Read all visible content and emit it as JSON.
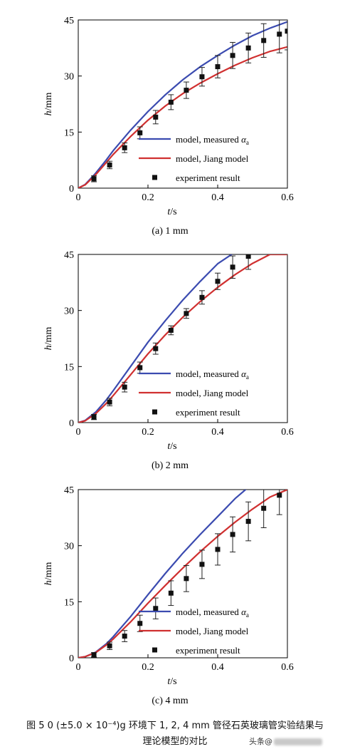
{
  "figure": {
    "caption_line1": "图 5  0 (±5.0 × 10⁻⁴)g 环境下 1, 2, 4 mm 管径石英玻璃管实验结果与",
    "caption_line2": "理论模型的对比",
    "watermark": "头条@"
  },
  "colors": {
    "measured": "#3b4bb0",
    "jiang": "#d03030",
    "experiment": "#111111",
    "axis": "#000000"
  },
  "chart_data": [
    {
      "type": "line",
      "panel_label": "(a) 1 mm",
      "xlabel": "t/s",
      "ylabel": "h/mm",
      "xlim": [
        0,
        0.6
      ],
      "ylim": [
        0,
        45
      ],
      "xticks": [
        "0",
        "0.2",
        "0.4",
        "0.6"
      ],
      "yticks": [
        "0",
        "15",
        "30",
        "45"
      ],
      "grid": false,
      "legend_position": "bottom-right",
      "series": [
        {
          "name": "model, measured αa",
          "kind": "line",
          "color": "#3b4bb0",
          "x": [
            0,
            0.02,
            0.05,
            0.08,
            0.1,
            0.15,
            0.2,
            0.25,
            0.3,
            0.35,
            0.4,
            0.45,
            0.5,
            0.55,
            0.6
          ],
          "y": [
            0,
            1,
            4,
            7.5,
            10,
            15.5,
            20.5,
            25,
            29,
            32.5,
            35.5,
            38.3,
            40.8,
            42.8,
            44.5
          ]
        },
        {
          "name": "model, Jiang model",
          "kind": "line",
          "color": "#d03030",
          "x": [
            0,
            0.02,
            0.05,
            0.08,
            0.1,
            0.15,
            0.2,
            0.25,
            0.3,
            0.35,
            0.4,
            0.45,
            0.5,
            0.55,
            0.6
          ],
          "y": [
            0,
            0.9,
            3.6,
            6.8,
            9,
            13.8,
            18.2,
            22,
            25.3,
            28.1,
            30.6,
            32.9,
            34.9,
            36.6,
            37.8
          ]
        },
        {
          "name": "experiment result",
          "kind": "scatter",
          "color": "#111111",
          "x": [
            0.045,
            0.09,
            0.133,
            0.177,
            0.222,
            0.266,
            0.31,
            0.355,
            0.4,
            0.443,
            0.488,
            0.532,
            0.577,
            0.6
          ],
          "y": [
            2.5,
            6.2,
            10.8,
            14.8,
            19,
            23,
            26.2,
            29.8,
            32.5,
            35.5,
            37.5,
            39.5,
            41.2,
            42
          ],
          "err": [
            0.8,
            1,
            1.3,
            1.6,
            1.8,
            2,
            2.2,
            2.5,
            3,
            3.5,
            4,
            4.5,
            5,
            5
          ]
        }
      ]
    },
    {
      "type": "line",
      "panel_label": "(b) 2 mm",
      "xlabel": "t/s",
      "ylabel": "h/mm",
      "xlim": [
        0,
        0.6
      ],
      "ylim": [
        0,
        45
      ],
      "xticks": [
        "0",
        "0.2",
        "0.4",
        "0.6"
      ],
      "yticks": [
        "0",
        "15",
        "30",
        "45"
      ],
      "grid": false,
      "legend_position": "bottom-right",
      "series": [
        {
          "name": "model, measured αa",
          "kind": "line",
          "color": "#3b4bb0",
          "x": [
            0,
            0.02,
            0.05,
            0.08,
            0.1,
            0.15,
            0.2,
            0.25,
            0.3,
            0.35,
            0.4,
            0.44
          ],
          "y": [
            0,
            0.6,
            2.8,
            6,
            8.5,
            15,
            21.5,
            27.3,
            32.8,
            37.8,
            42.5,
            45
          ]
        },
        {
          "name": "model, Jiang model",
          "kind": "line",
          "color": "#d03030",
          "x": [
            0,
            0.02,
            0.05,
            0.08,
            0.1,
            0.15,
            0.2,
            0.25,
            0.3,
            0.35,
            0.4,
            0.45,
            0.5,
            0.55,
            0.6
          ],
          "y": [
            0,
            0.5,
            2.4,
            5.1,
            7.2,
            12.8,
            18.4,
            23.5,
            28.2,
            32.4,
            36.2,
            39.6,
            42.6,
            45,
            45
          ]
        },
        {
          "name": "experiment result",
          "kind": "scatter",
          "color": "#111111",
          "x": [
            0.045,
            0.09,
            0.133,
            0.177,
            0.222,
            0.266,
            0.31,
            0.355,
            0.4,
            0.443,
            0.488
          ],
          "y": [
            1.5,
            5.5,
            9.5,
            14.7,
            19.8,
            24.7,
            29.2,
            33.5,
            37.8,
            41.6,
            44.5
          ],
          "err": [
            0.7,
            1,
            1.3,
            1.5,
            1.5,
            1.2,
            1.3,
            1.8,
            2.2,
            3,
            3.5
          ]
        }
      ]
    },
    {
      "type": "line",
      "panel_label": "(c) 4 mm",
      "xlabel": "t/s",
      "ylabel": "h/mm",
      "xlim": [
        0,
        0.6
      ],
      "ylim": [
        0,
        45
      ],
      "xticks": [
        "0",
        "0.2",
        "0.4",
        "0.6"
      ],
      "yticks": [
        "0",
        "15",
        "30",
        "45"
      ],
      "grid": false,
      "legend_position": "bottom-right",
      "series": [
        {
          "name": "model, measured αa",
          "kind": "line",
          "color": "#3b4bb0",
          "x": [
            0,
            0.02,
            0.05,
            0.08,
            0.1,
            0.15,
            0.2,
            0.25,
            0.3,
            0.35,
            0.4,
            0.45,
            0.48
          ],
          "y": [
            0,
            0.3,
            1.5,
            3.7,
            5.6,
            11,
            16.9,
            22.6,
            28,
            33,
            37.8,
            42.6,
            45
          ]
        },
        {
          "name": "model, Jiang model",
          "kind": "line",
          "color": "#d03030",
          "x": [
            0,
            0.02,
            0.05,
            0.08,
            0.1,
            0.15,
            0.2,
            0.25,
            0.3,
            0.35,
            0.4,
            0.45,
            0.5,
            0.55,
            0.6
          ],
          "y": [
            0,
            0.3,
            1.4,
            3.4,
            5,
            9.6,
            14.6,
            19.4,
            24,
            28.4,
            32.5,
            36.3,
            39.8,
            43,
            45
          ]
        },
        {
          "name": "experiment result",
          "kind": "scatter",
          "color": "#111111",
          "x": [
            0.045,
            0.09,
            0.133,
            0.177,
            0.222,
            0.266,
            0.31,
            0.355,
            0.4,
            0.443,
            0.488,
            0.532,
            0.577
          ],
          "y": [
            0.8,
            3.2,
            5.8,
            9.2,
            13.2,
            17.3,
            21.2,
            25,
            29,
            33,
            36.5,
            40,
            43.5
          ],
          "err": [
            0.6,
            1,
            1.5,
            2.2,
            2.8,
            3.3,
            3.5,
            3.8,
            4.2,
            4.7,
            5.2,
            5.2,
            5.2
          ]
        }
      ]
    }
  ]
}
